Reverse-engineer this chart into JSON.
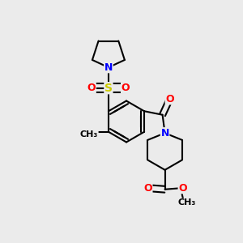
{
  "background_color": "#ebebeb",
  "bond_color": "#000000",
  "atom_colors": {
    "N": "#0000ff",
    "O": "#ff0000",
    "S": "#cccc00",
    "C": "#000000"
  },
  "figsize": [
    3.0,
    3.0
  ],
  "dpi": 100
}
